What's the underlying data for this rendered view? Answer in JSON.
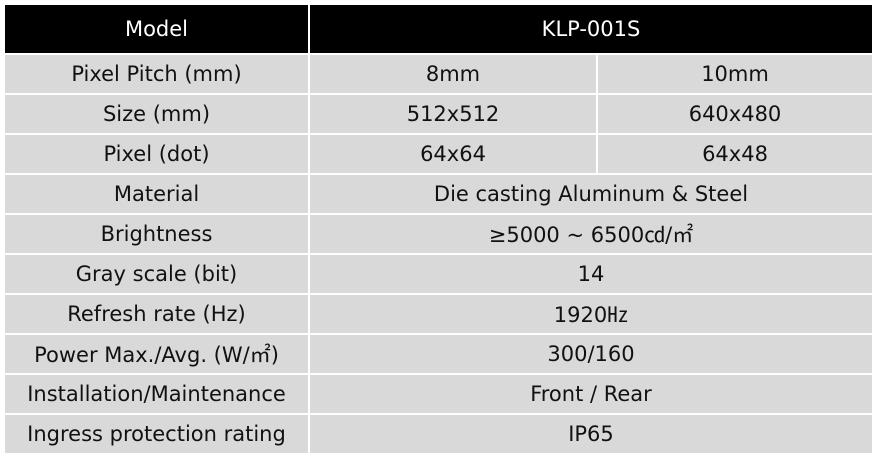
{
  "table": {
    "header": {
      "label": "Model",
      "value": "KLP-001S"
    },
    "rows": [
      {
        "label": "Pixel Pitch (mm)",
        "values": [
          "8mm",
          "10mm"
        ]
      },
      {
        "label": "Size (mm)",
        "values": [
          "512x512",
          "640x480"
        ]
      },
      {
        "label": "Pixel (dot)",
        "values": [
          "64x64",
          "64x48"
        ]
      },
      {
        "label": "Material",
        "values": [
          "Die casting Aluminum & Steel"
        ]
      },
      {
        "label": "Brightness",
        "values": [
          "≥5000 ~ 6500㏅/㎡"
        ]
      },
      {
        "label": "Gray scale (bit)",
        "values": [
          "14"
        ]
      },
      {
        "label": "Refresh rate (Hz)",
        "values": [
          "1920㎐"
        ]
      },
      {
        "label": "Power Max./Avg. (W/㎡)",
        "values": [
          "300/160"
        ]
      },
      {
        "label": "Installation/Maintenance",
        "values": [
          "Front / Rear"
        ]
      },
      {
        "label": "Ingress protection rating",
        "values": [
          "IP65"
        ]
      }
    ]
  },
  "colors": {
    "header_bg": "#000000",
    "header_text": "#ffffff",
    "cell_bg": "#d9d9d9",
    "cell_text": "#111111"
  }
}
